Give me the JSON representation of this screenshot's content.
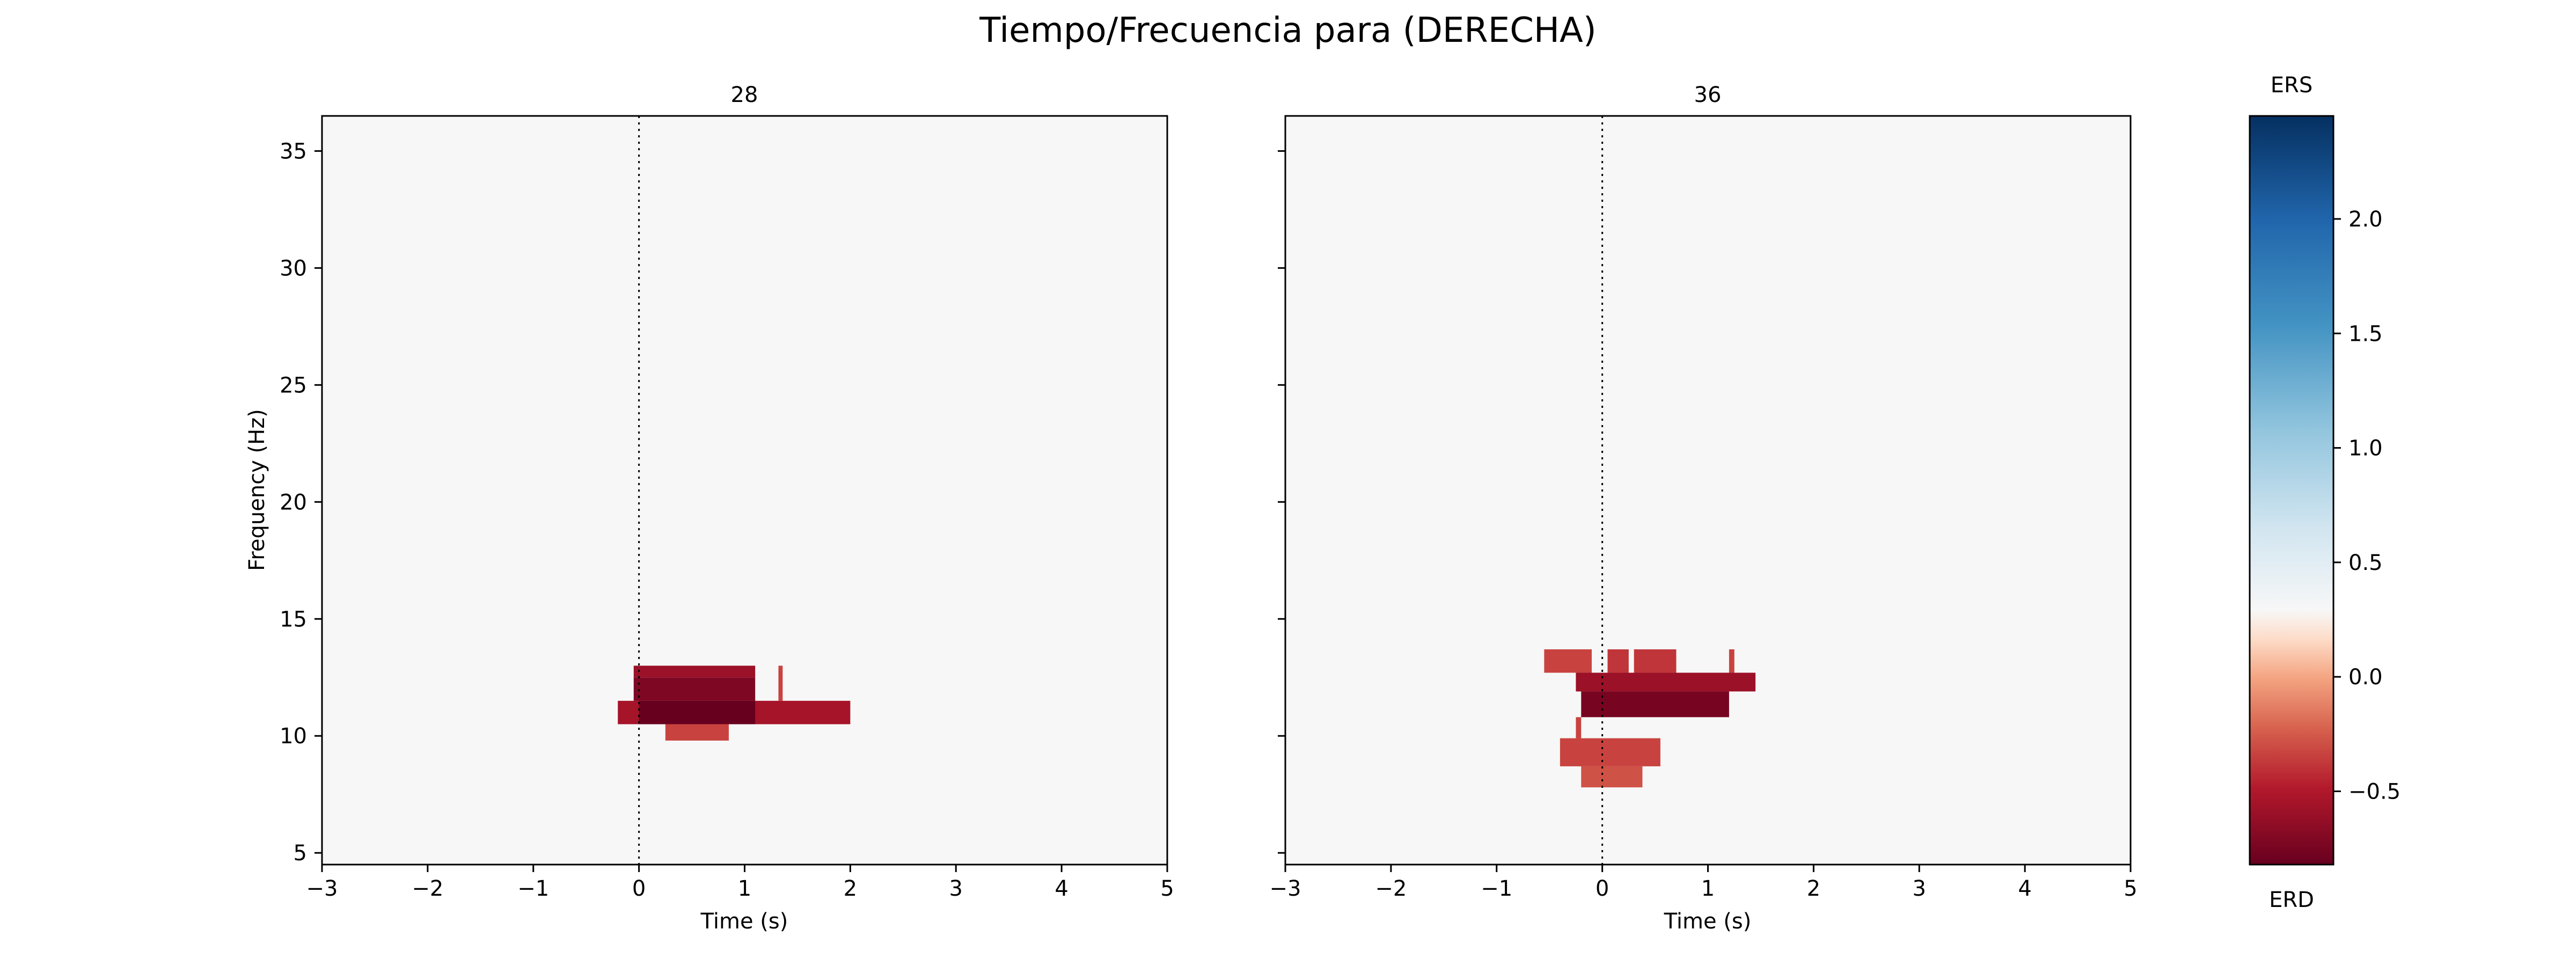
{
  "figure": {
    "suptitle": "Tiempo/Frecuencia para (DERECHA)"
  },
  "chart_data": [
    {
      "type": "heatmap",
      "title": "28",
      "xlabel": "Time (s)",
      "ylabel": "Frequency (Hz)",
      "xlim": [
        -3,
        5
      ],
      "ylim": [
        4.5,
        36.5
      ],
      "xticks": [
        -3,
        -2,
        -1,
        0,
        1,
        2,
        3,
        4,
        5
      ],
      "yticks": [
        5,
        10,
        15,
        20,
        25,
        30,
        35
      ],
      "event_line_x": 0,
      "background_value": 0.0,
      "cells": [
        {
          "t0": -0.2,
          "t1": 2.0,
          "f0": 10.5,
          "f1": 11.5,
          "value": -0.55
        },
        {
          "t0": 0.0,
          "t1": 1.1,
          "f0": 10.5,
          "f1": 11.5,
          "value": -0.82
        },
        {
          "t0": -0.05,
          "t1": 1.1,
          "f0": 11.5,
          "f1": 12.5,
          "value": -0.72
        },
        {
          "t0": -0.05,
          "t1": 1.1,
          "f0": 12.5,
          "f1": 13.0,
          "value": -0.6
        },
        {
          "t0": 0.25,
          "t1": 0.85,
          "f0": 9.8,
          "f1": 10.5,
          "value": -0.35
        },
        {
          "t0": 1.32,
          "t1": 1.36,
          "f0": 11.5,
          "f1": 13.0,
          "value": -0.35
        }
      ]
    },
    {
      "type": "heatmap",
      "title": "36",
      "xlabel": "Time (s)",
      "ylabel": "",
      "xlim": [
        -3,
        5
      ],
      "ylim": [
        4.5,
        36.5
      ],
      "xticks": [
        -3,
        -2,
        -1,
        0,
        1,
        2,
        3,
        4,
        5
      ],
      "yticks": [
        5,
        10,
        15,
        20,
        25,
        30,
        35
      ],
      "event_line_x": 0,
      "background_value": 0.0,
      "cells": [
        {
          "t0": -0.55,
          "t1": -0.1,
          "f0": 12.7,
          "f1": 13.7,
          "value": -0.35
        },
        {
          "t0": 0.05,
          "t1": 0.25,
          "f0": 12.7,
          "f1": 13.7,
          "value": -0.4
        },
        {
          "t0": 0.3,
          "t1": 0.7,
          "f0": 12.7,
          "f1": 13.7,
          "value": -0.4
        },
        {
          "t0": 1.2,
          "t1": 1.25,
          "f0": 12.7,
          "f1": 13.7,
          "value": -0.35
        },
        {
          "t0": -0.25,
          "t1": 1.45,
          "f0": 11.9,
          "f1": 12.7,
          "value": -0.6
        },
        {
          "t0": -0.2,
          "t1": 1.2,
          "f0": 10.8,
          "f1": 11.9,
          "value": -0.75
        },
        {
          "t0": -0.25,
          "t1": -0.2,
          "f0": 9.9,
          "f1": 10.8,
          "value": -0.35
        },
        {
          "t0": -0.4,
          "t1": 0.55,
          "f0": 8.7,
          "f1": 9.9,
          "value": -0.35
        },
        {
          "t0": -0.2,
          "t1": 0.38,
          "f0": 7.8,
          "f1": 8.7,
          "value": -0.3
        }
      ]
    }
  ],
  "colorbar": {
    "top_label": "ERS",
    "bottom_label": "ERD",
    "range": [
      -0.82,
      2.45
    ],
    "ticks": [
      -0.5,
      0.0,
      0.5,
      1.0,
      1.5,
      2.0
    ]
  }
}
